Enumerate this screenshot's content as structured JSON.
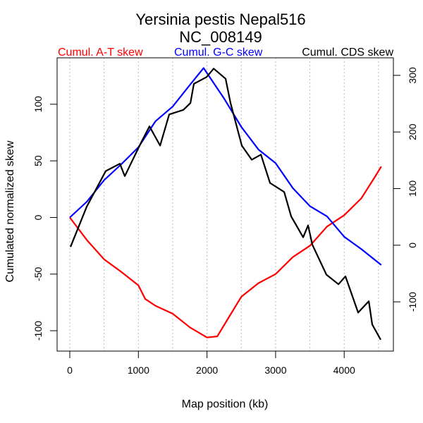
{
  "chart_data": {
    "type": "line",
    "title": "Yersinia pestis Nepal516",
    "subtitle": "NC_008149",
    "xlabel": "Map position (kb)",
    "ylabel": "Cumulated normalized skew",
    "xlim": [
      -185,
      4717
    ],
    "ylim": [
      -118,
      141
    ],
    "ylim_right": [
      -187,
      331
    ],
    "x_ticks": [
      0,
      1000,
      2000,
      3000,
      4000
    ],
    "y_ticks": [
      -100,
      -50,
      0,
      50,
      100
    ],
    "y_right_ticks": [
      -100,
      0,
      100,
      200,
      300
    ],
    "grid_x": [
      0,
      500,
      1000,
      1500,
      2000,
      2500,
      3000,
      3500,
      4000,
      4500
    ],
    "legend_placement": "top",
    "series": [
      {
        "name": "Cumul. A-T skew",
        "color": "#ff0000",
        "axis": "left",
        "x": [
          0,
          250,
          500,
          750,
          1000,
          1100,
          1250,
          1500,
          1750,
          2000,
          2150,
          2300,
          2500,
          2750,
          3000,
          3250,
          3500,
          3750,
          4000,
          4250,
          4450,
          4540
        ],
        "y": [
          0,
          -20,
          -37,
          -48,
          -60,
          -72,
          -78,
          -85,
          -97,
          -106,
          -105,
          -90,
          -70,
          -58,
          -50,
          -35,
          -25,
          -8,
          2,
          17,
          36,
          45
        ]
      },
      {
        "name": "Cumul. G-C skew",
        "color": "#0000ff",
        "axis": "left",
        "x": [
          0,
          250,
          500,
          750,
          1000,
          1250,
          1500,
          1750,
          1950,
          2250,
          2500,
          2750,
          3000,
          3250,
          3500,
          3750,
          4000,
          4250,
          4540
        ],
        "y": [
          0,
          14,
          33,
          47,
          62,
          85,
          98,
          117,
          132,
          105,
          80,
          60,
          48,
          26,
          10,
          1,
          -17,
          -28,
          -42
        ]
      },
      {
        "name": "Cumul. CDS skew",
        "color": "#000000",
        "axis": "right",
        "x": [
          10,
          247,
          524,
          730,
          802,
          1038,
          1161,
          1316,
          1449,
          1655,
          1758,
          1809,
          1994,
          2097,
          2271,
          2343,
          2508,
          2652,
          2786,
          2919,
          3125,
          3227,
          3402,
          3474,
          3535,
          3741,
          3916,
          4018,
          4203,
          4358,
          4409,
          4532
        ],
        "y": [
          -3,
          68,
          131,
          144,
          122,
          181,
          210,
          176,
          231,
          239,
          251,
          285,
          297,
          312,
          294,
          251,
          176,
          151,
          160,
          110,
          94,
          51,
          14,
          35,
          1,
          -52,
          -69,
          -55,
          -119,
          -99,
          -140,
          -167
        ]
      }
    ]
  }
}
